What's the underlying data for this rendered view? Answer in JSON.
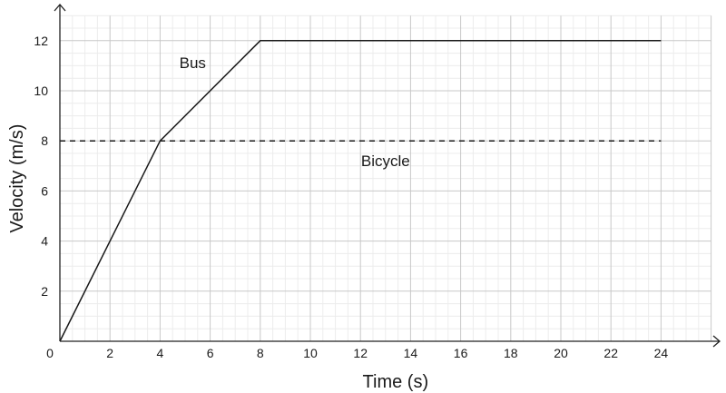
{
  "chart_data": {
    "type": "line",
    "title": "",
    "xlabel": "Time (s)",
    "ylabel": "Velocity (m/s)",
    "xlim": [
      0,
      26
    ],
    "ylim": [
      0,
      13
    ],
    "x_ticks": [
      0,
      2,
      4,
      6,
      8,
      10,
      12,
      14,
      16,
      18,
      20,
      22,
      24
    ],
    "y_ticks": [
      2,
      4,
      6,
      8,
      10,
      12
    ],
    "grid": true,
    "series": [
      {
        "name": "Bus",
        "color": "#1a1a1a",
        "dash": "solid",
        "points": [
          [
            0,
            0
          ],
          [
            4,
            8
          ],
          [
            8,
            12
          ],
          [
            24,
            12
          ]
        ]
      },
      {
        "name": "Bicycle",
        "color": "#1a1a1a",
        "dash": "dashed",
        "points": [
          [
            0,
            8
          ],
          [
            24,
            8
          ]
        ]
      }
    ],
    "annotations": [
      {
        "text": "Bus",
        "x": 5.3,
        "y": 10.9
      },
      {
        "text": "Bicycle",
        "x": 13.0,
        "y": 7.0
      }
    ]
  }
}
